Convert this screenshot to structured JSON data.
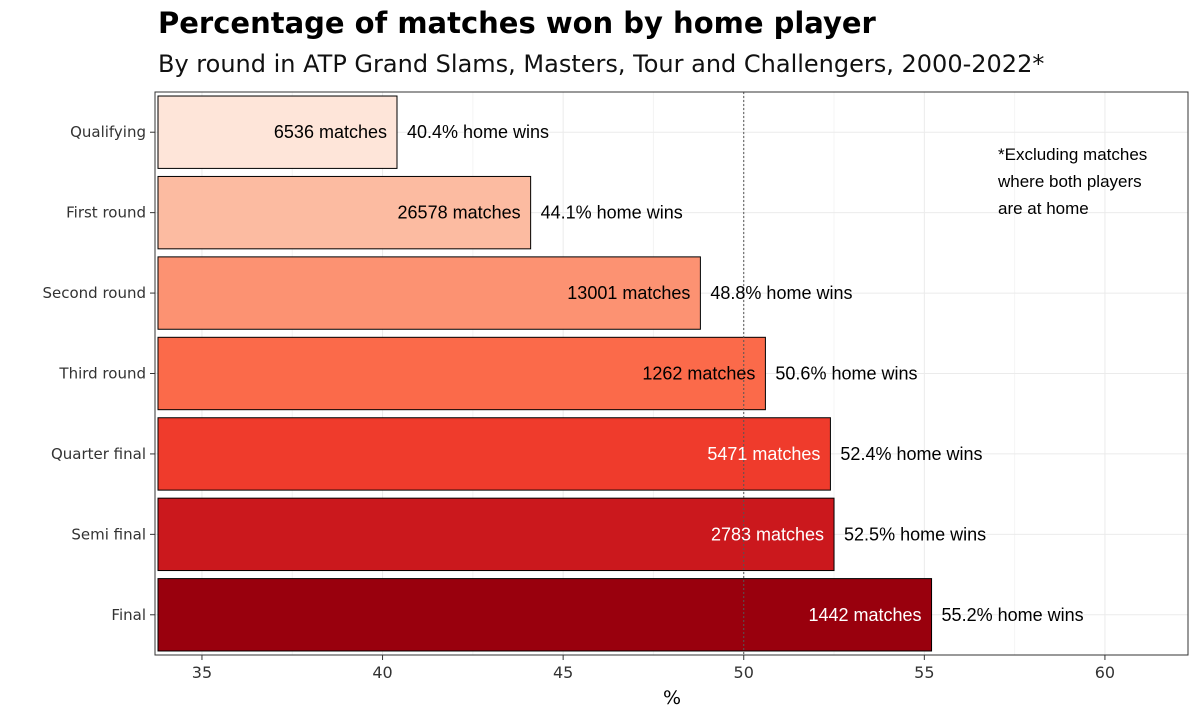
{
  "chart_data": {
    "type": "bar",
    "orientation": "horizontal",
    "title": "Percentage of matches won by home player",
    "subtitle": "By round in ATP Grand Slams, Masters, Tour and Challengers, 2000-2022*",
    "xlabel": "%",
    "ylabel": "",
    "xlim": [
      33.7,
      62.3
    ],
    "x_ticks": [
      35,
      40,
      45,
      50,
      55,
      60
    ],
    "reference_line": 50,
    "grid": true,
    "note": [
      "*Excluding matches",
      "where both players",
      "are at home"
    ],
    "categories": [
      "Qualifying",
      "First round",
      "Second round",
      "Third round",
      "Quarter final",
      "Semi final",
      "Final"
    ],
    "values": [
      40.4,
      44.1,
      48.8,
      50.6,
      52.4,
      52.5,
      55.2
    ],
    "matches": [
      6536,
      26578,
      13001,
      1262,
      5471,
      2783,
      1442
    ],
    "bar_labels": [
      "6536 matches",
      "26578 matches",
      "13001 matches",
      "1262 matches",
      "5471 matches",
      "2783 matches",
      "1442 matches"
    ],
    "value_labels": [
      "40.4% home wins",
      "44.1% home wins",
      "48.8% home wins",
      "50.6% home wins",
      "52.4% home wins",
      "52.5% home wins",
      "55.2% home wins"
    ],
    "colors": [
      "#fee5d9",
      "#fcbba1",
      "#fc9272",
      "#fb6a4a",
      "#ef3b2c",
      "#cb181d",
      "#99000d"
    ],
    "label_colors": [
      "#000000",
      "#000000",
      "#000000",
      "#000000",
      "#ffffff",
      "#ffffff",
      "#ffffff"
    ]
  }
}
